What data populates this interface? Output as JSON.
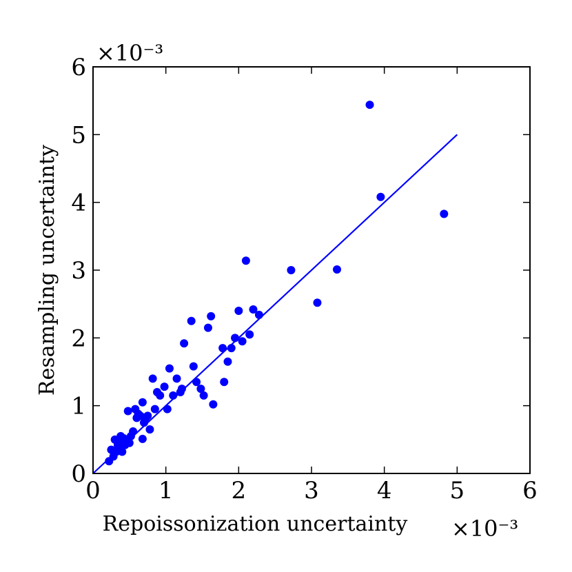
{
  "chart_data": {
    "type": "scatter",
    "title": "",
    "xlabel": "Repoissonization uncertainty",
    "ylabel": "Resampling uncertainty",
    "x_multiplier": "×10⁻³",
    "y_multiplier": "×10⁻³",
    "xlim": [
      0,
      6
    ],
    "ylim": [
      0,
      6
    ],
    "xticks": [
      "0",
      "1",
      "2",
      "3",
      "4",
      "5",
      "6"
    ],
    "yticks": [
      "0",
      "1",
      "2",
      "3",
      "4",
      "5",
      "6"
    ],
    "grid": false,
    "colors": {
      "points": "#0000ff",
      "fit_line": "#0000ff",
      "axes": "#000000"
    },
    "series": [
      {
        "name": "points",
        "x": [
          0.22,
          0.25,
          0.28,
          0.3,
          0.32,
          0.34,
          0.36,
          0.38,
          0.4,
          0.42,
          0.44,
          0.46,
          0.48,
          0.52,
          0.55,
          0.58,
          0.6,
          0.62,
          0.65,
          0.68,
          0.7,
          0.72,
          0.75,
          0.78,
          0.82,
          0.85,
          0.88,
          0.92,
          0.98,
          1.02,
          1.05,
          1.1,
          1.15,
          1.2,
          1.22,
          1.25,
          1.35,
          1.38,
          1.42,
          1.48,
          1.52,
          1.58,
          1.62,
          1.65,
          1.78,
          1.8,
          1.85,
          1.9,
          1.95,
          2.0,
          2.05,
          2.1,
          2.15,
          2.2,
          2.28,
          2.72,
          3.08,
          3.35,
          3.8,
          3.95,
          4.82,
          0.35,
          0.5,
          0.68
        ],
        "y": [
          0.18,
          0.35,
          0.25,
          0.5,
          0.32,
          0.42,
          0.48,
          0.55,
          0.32,
          0.52,
          0.42,
          0.5,
          0.92,
          0.55,
          0.62,
          0.95,
          0.82,
          0.88,
          0.85,
          1.05,
          0.75,
          0.8,
          0.85,
          0.65,
          1.4,
          0.95,
          1.2,
          1.15,
          1.28,
          0.95,
          1.55,
          1.15,
          1.4,
          1.2,
          1.25,
          1.92,
          2.25,
          1.58,
          1.35,
          1.25,
          1.15,
          2.15,
          2.32,
          1.02,
          1.85,
          1.35,
          1.65,
          1.85,
          2.0,
          2.4,
          1.95,
          3.14,
          2.05,
          2.42,
          2.34,
          3.0,
          2.52,
          3.01,
          5.44,
          4.08,
          3.83,
          0.38,
          0.45,
          0.51
        ]
      }
    ],
    "fit_line": {
      "x": [
        0,
        5
      ],
      "y": [
        0,
        5
      ]
    }
  }
}
